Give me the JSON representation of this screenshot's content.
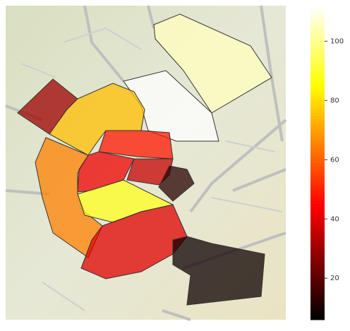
{
  "chart_data": {
    "type": "choropleth",
    "values": [
      105,
      112,
      30,
      75,
      65,
      48,
      42,
      36,
      12,
      88,
      40,
      8
    ],
    "clim": [
      6,
      112
    ],
    "colormap": "hot",
    "colorbar_ticks": [
      20,
      40,
      60,
      80,
      100
    ]
  }
}
